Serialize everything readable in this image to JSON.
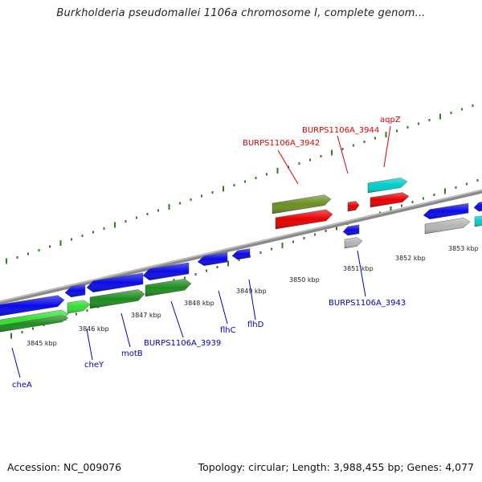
{
  "title": "Burkholderia pseudomallei 1106a chromosome I, complete genom...",
  "footer": {
    "accession": "Accession: NC_009076",
    "topology": "Topology: circular; Length: 3,988,455 bp; Genes: 4,077"
  },
  "colors": {
    "ticks": "#2e7d1e",
    "backbone": "#8a8a8a",
    "blue": "#0a0ae6",
    "red": "#e60000",
    "olive": "#6b8e23",
    "cyan": "#00cccc",
    "green": "#1e8c1e",
    "light_green": "#33dd33",
    "grey": "#b4b4b4",
    "label_blue": "#0000bb",
    "label_red": "#dd0000"
  },
  "kbp_labels": [
    "3845 kbp",
    "3846 kbp",
    "3847 kbp",
    "3848 kbp",
    "3849 kbp",
    "3850 kbp",
    "3851 kbp",
    "3852 kbp",
    "3853 kbp"
  ],
  "gene_labels": [
    {
      "text": "cheA",
      "color": "blue"
    },
    {
      "text": "cheY",
      "color": "blue"
    },
    {
      "text": "motB",
      "color": "blue"
    },
    {
      "text": "BURPS1106A_3939",
      "color": "blue"
    },
    {
      "text": "flhC",
      "color": "blue"
    },
    {
      "text": "flhD",
      "color": "blue"
    },
    {
      "text": "BURPS1106A_3943",
      "color": "blue"
    },
    {
      "text": "BURPS1106A_3942",
      "color": "red"
    },
    {
      "text": "BURPS1106A_3944",
      "color": "red"
    },
    {
      "text": "aqpZ",
      "color": "red"
    }
  ]
}
